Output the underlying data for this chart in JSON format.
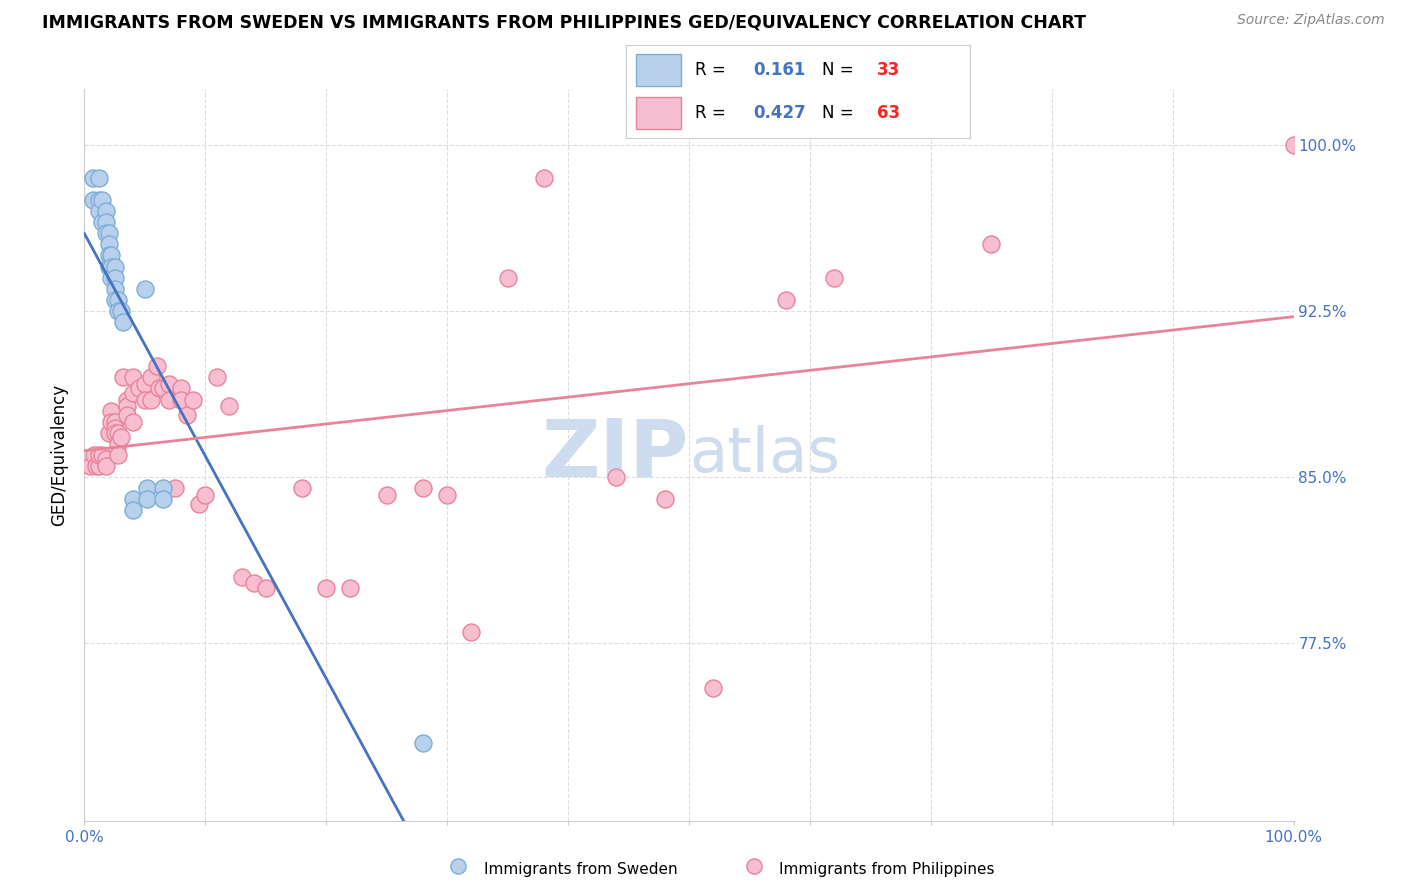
{
  "title": "IMMIGRANTS FROM SWEDEN VS IMMIGRANTS FROM PHILIPPINES GED/EQUIVALENCY CORRELATION CHART",
  "source": "Source: ZipAtlas.com",
  "ylabel": "GED/Equivalency",
  "ytick_labels": [
    "77.5%",
    "85.0%",
    "92.5%",
    "100.0%"
  ],
  "ytick_values": [
    0.775,
    0.85,
    0.925,
    1.0
  ],
  "xlim": [
    0.0,
    1.0
  ],
  "ylim": [
    0.695,
    1.025
  ],
  "sweden_color": "#b8d0eb",
  "sweden_edge": "#7bafd4",
  "philippines_color": "#f7bdd0",
  "philippines_edge": "#e8849a",
  "sweden_R": "0.161",
  "sweden_N": "33",
  "philippines_R": "0.427",
  "philippines_N": "63",
  "trend_blue": "#4472c4",
  "trend_pink": "#e8849a",
  "legend_R_color": "#4472c4",
  "legend_N_color": "#ff2222",
  "sweden_x": [
    0.007,
    0.007,
    0.012,
    0.012,
    0.012,
    0.015,
    0.015,
    0.018,
    0.018,
    0.018,
    0.02,
    0.02,
    0.02,
    0.02,
    0.022,
    0.022,
    0.022,
    0.025,
    0.025,
    0.025,
    0.025,
    0.028,
    0.028,
    0.03,
    0.032,
    0.04,
    0.04,
    0.05,
    0.052,
    0.052,
    0.065,
    0.065,
    0.28
  ],
  "sweden_y": [
    0.985,
    0.975,
    0.985,
    0.975,
    0.97,
    0.975,
    0.965,
    0.97,
    0.965,
    0.96,
    0.96,
    0.955,
    0.95,
    0.945,
    0.95,
    0.945,
    0.94,
    0.945,
    0.94,
    0.935,
    0.93,
    0.93,
    0.925,
    0.925,
    0.92,
    0.84,
    0.835,
    0.935,
    0.845,
    0.84,
    0.845,
    0.84,
    0.73
  ],
  "philippines_x": [
    0.005,
    0.008,
    0.01,
    0.012,
    0.012,
    0.015,
    0.018,
    0.018,
    0.02,
    0.022,
    0.022,
    0.025,
    0.025,
    0.025,
    0.028,
    0.028,
    0.028,
    0.03,
    0.032,
    0.035,
    0.035,
    0.035,
    0.04,
    0.04,
    0.04,
    0.045,
    0.05,
    0.05,
    0.055,
    0.055,
    0.06,
    0.062,
    0.065,
    0.07,
    0.07,
    0.075,
    0.08,
    0.08,
    0.085,
    0.09,
    0.095,
    0.1,
    0.11,
    0.12,
    0.13,
    0.14,
    0.15,
    0.18,
    0.2,
    0.22,
    0.25,
    0.28,
    0.3,
    0.32,
    0.35,
    0.38,
    0.44,
    0.48,
    0.52,
    0.58,
    0.62,
    0.75,
    1.0
  ],
  "philippines_y": [
    0.855,
    0.86,
    0.855,
    0.855,
    0.86,
    0.86,
    0.858,
    0.855,
    0.87,
    0.88,
    0.875,
    0.875,
    0.872,
    0.87,
    0.87,
    0.865,
    0.86,
    0.868,
    0.895,
    0.885,
    0.882,
    0.878,
    0.895,
    0.888,
    0.875,
    0.89,
    0.892,
    0.885,
    0.895,
    0.885,
    0.9,
    0.89,
    0.89,
    0.892,
    0.885,
    0.845,
    0.89,
    0.885,
    0.878,
    0.885,
    0.838,
    0.842,
    0.895,
    0.882,
    0.805,
    0.802,
    0.8,
    0.845,
    0.8,
    0.8,
    0.842,
    0.845,
    0.842,
    0.78,
    0.94,
    0.985,
    0.85,
    0.84,
    0.755,
    0.93,
    0.94,
    0.955,
    1.0
  ],
  "background_color": "#ffffff",
  "grid_color": "#dddddd",
  "watermark_zip": "ZIP",
  "watermark_atlas": "atlas",
  "watermark_color": "#cddcee"
}
